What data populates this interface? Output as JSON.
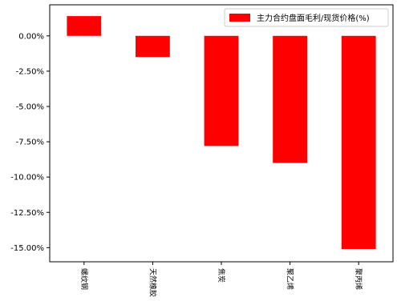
{
  "chart_data": {
    "type": "bar",
    "title": "",
    "xlabel": "",
    "ylabel": "",
    "categories": [
      "螺纹钢",
      "天然橡胶",
      "焦炭",
      "聚乙烯",
      "聚丙烯"
    ],
    "series": [
      {
        "name": "主力合约盘面毛利/现货价格(%)",
        "color": "#ff0000",
        "values": [
          1.4,
          -1.5,
          -7.8,
          -9.0,
          -15.1
        ]
      }
    ],
    "ylim": [
      -16.0,
      2.2
    ],
    "yticks": [
      0.0,
      -2.5,
      -5.0,
      -7.5,
      -10.0,
      -12.5,
      -15.0
    ],
    "ytick_labels": [
      "0.00%",
      "-2.50%",
      "-5.00%",
      "-7.50%",
      "-10.00%",
      "-12.50%",
      "-15.00%"
    ],
    "x_tick_rotation": -90,
    "grid": false,
    "legend_position": "top-right"
  }
}
